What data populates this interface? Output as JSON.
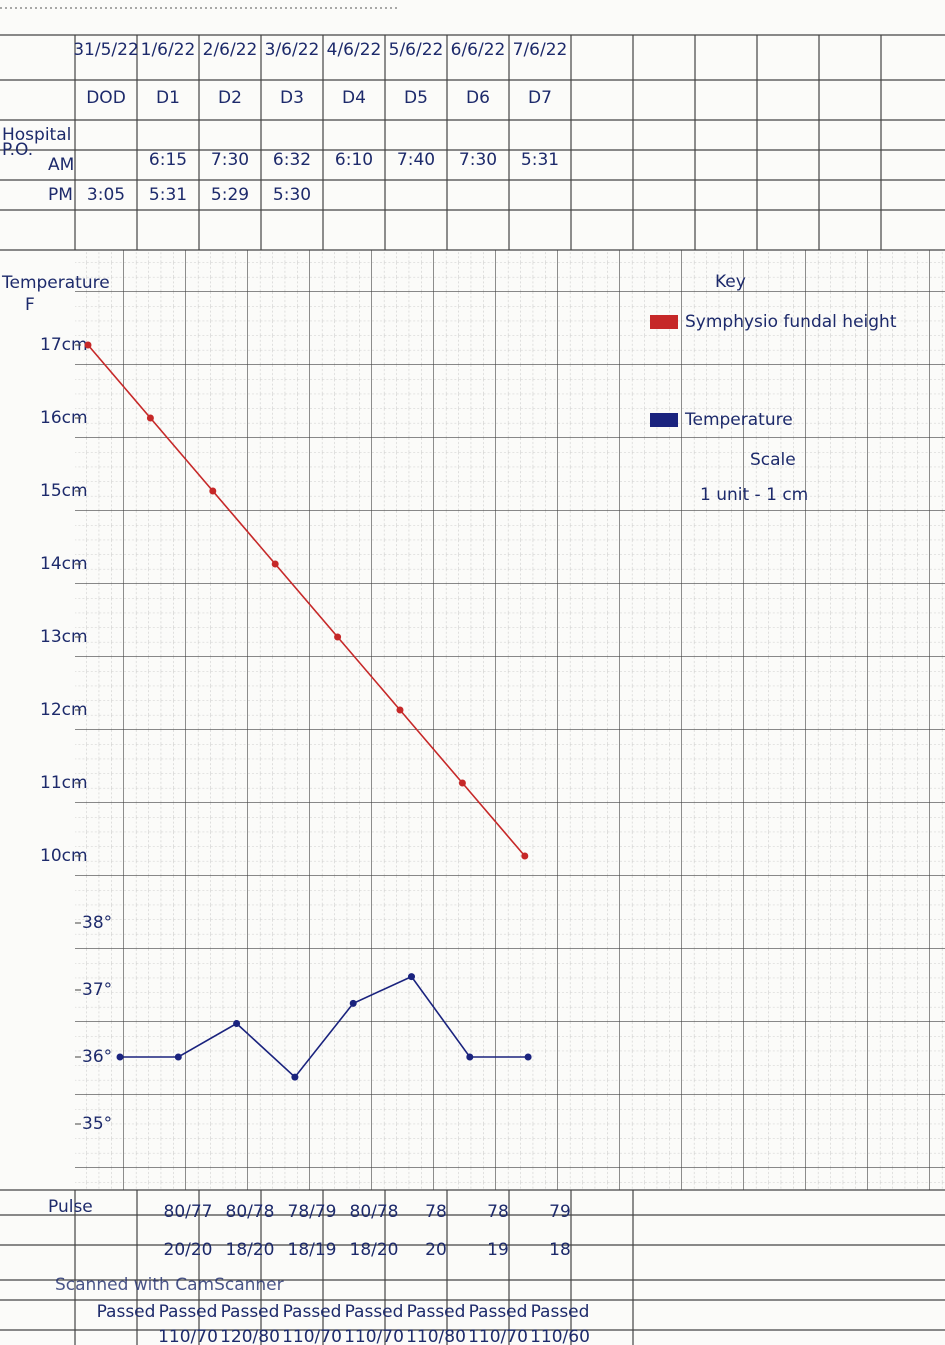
{
  "form": {
    "row_labels": [
      "Hospital",
      "P.O.",
      "AM",
      "PM"
    ],
    "temperature": "Temperature",
    "unit": "F",
    "pulse": "Pulse"
  },
  "table": {
    "dates": [
      "31/5/22",
      "1/6/22",
      "2/6/22",
      "3/6/22",
      "4/6/22",
      "5/6/22",
      "6/6/22",
      "7/6/22"
    ],
    "days": [
      "DOD",
      "D1",
      "D2",
      "D3",
      "D4",
      "D5",
      "D6",
      "D7"
    ],
    "am": [
      null,
      "6:15",
      "7:30",
      "6:32",
      "6:10",
      "7:40",
      "7:30",
      "5:31"
    ],
    "pm": [
      "3:05",
      "5:31",
      "5:29",
      "5:30",
      null,
      null,
      null,
      null
    ]
  },
  "chart_data": [
    {
      "type": "line",
      "ylim": [
        9.5,
        17.5
      ],
      "yticks": [
        {
          "value": 17,
          "label": "17cm"
        },
        {
          "value": 16,
          "label": "16cm"
        },
        {
          "value": 15,
          "label": "15cm"
        },
        {
          "value": 14,
          "label": "14cm"
        },
        {
          "value": 13,
          "label": "13cm"
        },
        {
          "value": 12,
          "label": "12cm"
        },
        {
          "value": 11,
          "label": "11cm"
        },
        {
          "value": 10,
          "label": "10cm"
        }
      ],
      "series": [
        {
          "name": "Symphysio fundal height",
          "color": "#c62828",
          "values": [
            17,
            16,
            15,
            14,
            13,
            12,
            11,
            10
          ]
        }
      ]
    },
    {
      "type": "line",
      "ylim": [
        34.5,
        38.5
      ],
      "yticks": [
        {
          "value": 38,
          "label": "38°"
        },
        {
          "value": 37,
          "label": "37°"
        },
        {
          "value": 36,
          "label": "36°"
        },
        {
          "value": 35,
          "label": "35°"
        }
      ],
      "series": [
        {
          "name": "Temperature",
          "color": "#1a237e",
          "values": [
            36,
            36,
            36.5,
            35.7,
            36.8,
            37.2,
            36,
            36
          ]
        }
      ]
    }
  ],
  "key": {
    "title": "Key",
    "scale_title": "Scale",
    "scale": "1 unit - 1 cm"
  },
  "vitals": {
    "pulse": [
      null,
      "80/77",
      "80/78",
      "78/79",
      "80/78",
      "78",
      "78",
      "79"
    ],
    "respiration": [
      null,
      "20/20",
      "18/20",
      "18/19",
      "18/20",
      "20",
      "19",
      "18"
    ],
    "output": [
      "Passed",
      "Passed",
      "Passed",
      "Passed",
      "Passed",
      "Passed",
      "Passed",
      "Passed"
    ],
    "bp": [
      null,
      "110/70",
      "120/80",
      "110/70",
      "110/70",
      "110/80",
      "110/70",
      "110/60"
    ]
  },
  "watermark": "Scanned with CamScanner"
}
